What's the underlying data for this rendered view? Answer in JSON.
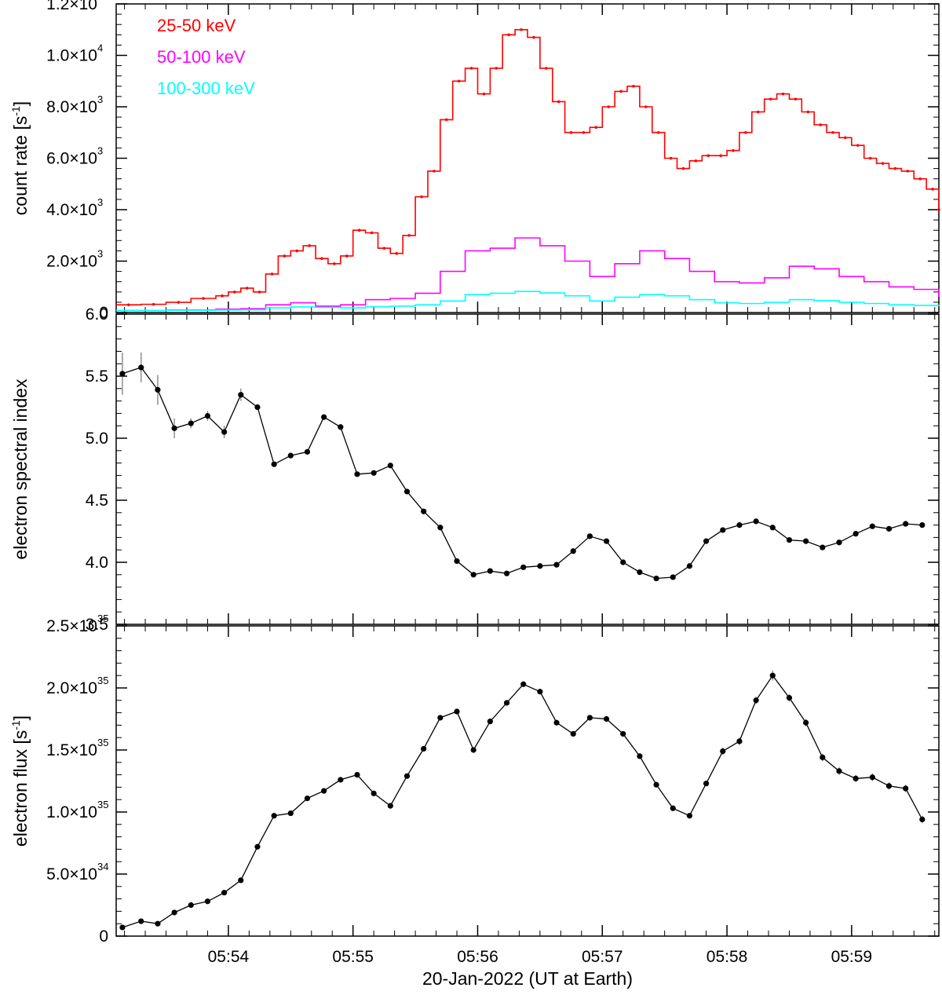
{
  "chart_data": [
    {
      "type": "line",
      "ylabel": "count rate [s",
      "ylabel_sup": "-1",
      "ylabel_close": "]",
      "xlim": [
        "05:53:06",
        "05:59:42"
      ],
      "ylim": [
        0,
        12000
      ],
      "legend": "top-left",
      "grid": false,
      "yticks": [
        {
          "v": 0,
          "base": "0",
          "exp": ""
        },
        {
          "v": 2000,
          "base": "2.0×10",
          "exp": "3"
        },
        {
          "v": 4000,
          "base": "4.0×10",
          "exp": "3"
        },
        {
          "v": 6000,
          "base": "6.0×10",
          "exp": "3"
        },
        {
          "v": 8000,
          "base": "8.0×10",
          "exp": "3"
        },
        {
          "v": 10000,
          "base": "1.0×10",
          "exp": "4"
        },
        {
          "v": 12000,
          "base": "1.2×10",
          "exp": "4"
        }
      ],
      "series": [
        {
          "name": "25-50 keV",
          "color": "#ff0000",
          "markers": true,
          "x": [
            "05:53:06",
            "05:53:18",
            "05:53:30",
            "05:53:42",
            "05:53:54",
            "05:54:00",
            "05:54:06",
            "05:54:12",
            "05:54:18",
            "05:54:24",
            "05:54:30",
            "05:54:36",
            "05:54:42",
            "05:54:48",
            "05:54:54",
            "05:55:00",
            "05:55:06",
            "05:55:12",
            "05:55:18",
            "05:55:24",
            "05:55:30",
            "05:55:36",
            "05:55:42",
            "05:55:48",
            "05:55:54",
            "05:56:00",
            "05:56:06",
            "05:56:12",
            "05:56:18",
            "05:56:24",
            "05:56:30",
            "05:56:36",
            "05:56:42",
            "05:56:48",
            "05:56:54",
            "05:57:00",
            "05:57:06",
            "05:57:12",
            "05:57:18",
            "05:57:24",
            "05:57:30",
            "05:57:36",
            "05:57:42",
            "05:57:48",
            "05:57:54",
            "05:58:00",
            "05:58:06",
            "05:58:12",
            "05:58:18",
            "05:58:24",
            "05:58:30",
            "05:58:36",
            "05:58:42",
            "05:58:48",
            "05:58:54",
            "05:59:00",
            "05:59:06",
            "05:59:12",
            "05:59:18",
            "05:59:24",
            "05:59:30",
            "05:59:36",
            "05:59:42"
          ],
          "values": [
            300,
            320,
            400,
            550,
            650,
            800,
            950,
            800,
            1500,
            2200,
            2400,
            2600,
            2100,
            1900,
            2200,
            3200,
            3100,
            2500,
            2300,
            3000,
            4500,
            5500,
            7500,
            9000,
            9500,
            8500,
            9500,
            10800,
            11000,
            10700,
            9500,
            8200,
            7000,
            7000,
            7200,
            8000,
            8600,
            8800,
            8000,
            7000,
            6000,
            5600,
            5900,
            6100,
            6100,
            6300,
            7000,
            7800,
            8300,
            8500,
            8300,
            7800,
            7300,
            7000,
            6800,
            6500,
            6000,
            5800,
            5600,
            5500,
            5200,
            4800,
            4000
          ]
        },
        {
          "name": "50-100 keV",
          "color": "#ff00ff",
          "markers": false,
          "x": [
            "05:53:06",
            "05:53:30",
            "05:53:54",
            "05:54:06",
            "05:54:18",
            "05:54:30",
            "05:54:42",
            "05:54:54",
            "05:55:06",
            "05:55:18",
            "05:55:30",
            "05:55:42",
            "05:55:54",
            "05:56:06",
            "05:56:18",
            "05:56:30",
            "05:56:42",
            "05:56:54",
            "05:57:06",
            "05:57:18",
            "05:57:30",
            "05:57:42",
            "05:57:54",
            "05:58:06",
            "05:58:18",
            "05:58:30",
            "05:58:42",
            "05:58:54",
            "05:59:06",
            "05:59:18",
            "05:59:30",
            "05:59:42"
          ],
          "values": [
            80,
            100,
            130,
            150,
            300,
            380,
            250,
            300,
            500,
            550,
            750,
            1600,
            2400,
            2500,
            2900,
            2600,
            2000,
            1400,
            1900,
            2400,
            2100,
            1600,
            1200,
            1150,
            1350,
            1800,
            1700,
            1400,
            1200,
            1000,
            900,
            600
          ]
        },
        {
          "name": "100-300 keV",
          "color": "#00ffff",
          "markers": false,
          "x": [
            "05:53:06",
            "05:53:30",
            "05:53:54",
            "05:54:06",
            "05:54:18",
            "05:54:30",
            "05:54:42",
            "05:54:54",
            "05:55:06",
            "05:55:18",
            "05:55:30",
            "05:55:42",
            "05:55:54",
            "05:56:06",
            "05:56:18",
            "05:56:30",
            "05:56:42",
            "05:56:54",
            "05:57:06",
            "05:57:18",
            "05:57:30",
            "05:57:42",
            "05:57:54",
            "05:58:06",
            "05:58:18",
            "05:58:30",
            "05:58:42",
            "05:58:54",
            "05:59:06",
            "05:59:18",
            "05:59:30",
            "05:59:42"
          ],
          "values": [
            80,
            90,
            100,
            110,
            180,
            220,
            200,
            180,
            230,
            250,
            300,
            450,
            700,
            750,
            820,
            760,
            650,
            450,
            600,
            700,
            650,
            500,
            380,
            350,
            400,
            500,
            460,
            400,
            350,
            300,
            280,
            250
          ]
        }
      ]
    },
    {
      "type": "line",
      "ylabel": "electron spectral index",
      "xlim": [
        "05:53:06",
        "05:59:42"
      ],
      "ylim": [
        3.5,
        6.0
      ],
      "grid": false,
      "yticks": [
        {
          "v": 3.5,
          "base": "3.5",
          "exp": ""
        },
        {
          "v": 4.0,
          "base": "4.0",
          "exp": ""
        },
        {
          "v": 4.5,
          "base": "4.5",
          "exp": ""
        },
        {
          "v": 5.0,
          "base": "5.0",
          "exp": ""
        },
        {
          "v": 5.5,
          "base": "5.5",
          "exp": ""
        },
        {
          "v": 6.0,
          "base": "6.0",
          "exp": ""
        }
      ],
      "series": [
        {
          "color": "#000000",
          "x": [
            "05:53:09",
            "05:53:18",
            "05:53:26",
            "05:53:34",
            "05:53:42",
            "05:53:50",
            "05:53:58",
            "05:54:06",
            "05:54:14",
            "05:54:22",
            "05:54:30",
            "05:54:38",
            "05:54:46",
            "05:54:54",
            "05:55:02",
            "05:55:10",
            "05:55:18",
            "05:55:26",
            "05:55:34",
            "05:55:42",
            "05:55:50",
            "05:55:58",
            "05:56:06",
            "05:56:14",
            "05:56:22",
            "05:56:30",
            "05:56:38",
            "05:56:46",
            "05:56:54",
            "05:57:02",
            "05:57:10",
            "05:57:18",
            "05:57:26",
            "05:57:34",
            "05:57:42",
            "05:57:50",
            "05:57:58",
            "05:58:06",
            "05:58:14",
            "05:58:22",
            "05:58:30",
            "05:58:38",
            "05:58:46",
            "05:58:54",
            "05:59:02",
            "05:59:10",
            "05:59:18",
            "05:59:26",
            "05:59:34"
          ],
          "values": [
            5.52,
            5.57,
            5.39,
            5.08,
            5.12,
            5.18,
            5.05,
            5.35,
            5.25,
            4.79,
            4.86,
            4.89,
            5.17,
            5.09,
            4.71,
            4.72,
            4.78,
            4.57,
            4.41,
            4.28,
            4.01,
            3.9,
            3.93,
            3.91,
            3.96,
            3.97,
            3.98,
            4.09,
            4.21,
            4.17,
            4.0,
            3.92,
            3.87,
            3.88,
            3.97,
            4.17,
            4.26,
            4.3,
            4.33,
            4.28,
            4.18,
            4.17,
            4.12,
            4.16,
            4.23,
            4.29,
            4.27,
            4.31,
            4.3
          ],
          "errors": [
            0.17,
            0.12,
            0.12,
            0.08,
            0.04,
            0.04,
            0.05,
            0.05,
            0.02,
            0.02,
            0.02,
            0.02,
            0.02,
            0.02,
            0.02,
            0.02,
            0.02,
            0.02,
            0.02,
            0.02,
            0.02,
            0.02,
            0.02,
            0.02,
            0.02,
            0.02,
            0.02,
            0.02,
            0.02,
            0.02,
            0.02,
            0.02,
            0.02,
            0.02,
            0.02,
            0.02,
            0.02,
            0.02,
            0.02,
            0.02,
            0.02,
            0.02,
            0.02,
            0.02,
            0.02,
            0.02,
            0.02,
            0.02,
            0.02
          ]
        }
      ]
    },
    {
      "type": "line",
      "ylabel": "electron flux [s",
      "ylabel_sup": "-1",
      "ylabel_close": "]",
      "xlabel": "20-Jan-2022 (UT at Earth)",
      "xlim": [
        "05:53:06",
        "05:59:42"
      ],
      "ylim": [
        0,
        2.5e+35
      ],
      "grid": false,
      "xticks": [
        "05:54",
        "05:55",
        "05:56",
        "05:57",
        "05:58",
        "05:59"
      ],
      "yticks": [
        {
          "v": 0,
          "base": "0",
          "exp": ""
        },
        {
          "v": 5e+34,
          "base": "5.0×10",
          "exp": "34"
        },
        {
          "v": 1e+35,
          "base": "1.0×10",
          "exp": "35"
        },
        {
          "v": 1.5e+35,
          "base": "1.5×10",
          "exp": "35"
        },
        {
          "v": 2e+35,
          "base": "2.0×10",
          "exp": "35"
        },
        {
          "v": 2.5e+35,
          "base": "2.5×10",
          "exp": "35"
        }
      ],
      "series": [
        {
          "color": "#000000",
          "x": [
            "05:53:09",
            "05:53:18",
            "05:53:26",
            "05:53:34",
            "05:53:42",
            "05:53:50",
            "05:53:58",
            "05:54:06",
            "05:54:14",
            "05:54:22",
            "05:54:30",
            "05:54:38",
            "05:54:46",
            "05:54:54",
            "05:55:02",
            "05:55:10",
            "05:55:18",
            "05:55:26",
            "05:55:34",
            "05:55:42",
            "05:55:50",
            "05:55:58",
            "05:56:06",
            "05:56:14",
            "05:56:22",
            "05:56:30",
            "05:56:38",
            "05:56:46",
            "05:56:54",
            "05:57:02",
            "05:57:10",
            "05:57:18",
            "05:57:26",
            "05:57:34",
            "05:57:42",
            "05:57:50",
            "05:57:58",
            "05:58:06",
            "05:58:14",
            "05:58:22",
            "05:58:30",
            "05:58:38",
            "05:58:46",
            "05:58:54",
            "05:59:02",
            "05:59:10",
            "05:59:18",
            "05:59:26",
            "05:59:34"
          ],
          "values": [
            7e+33,
            1.2e+34,
            1e+34,
            1.9e+34,
            2.5e+34,
            2.8e+34,
            3.5e+34,
            4.5e+34,
            7.2e+34,
            9.7e+34,
            9.9e+34,
            1.11e+35,
            1.17e+35,
            1.26e+35,
            1.3e+35,
            1.15e+35,
            1.05e+35,
            1.29e+35,
            1.51e+35,
            1.76e+35,
            1.81e+35,
            1.5e+35,
            1.73e+35,
            1.88e+35,
            2.03e+35,
            1.97e+35,
            1.72e+35,
            1.63e+35,
            1.76e+35,
            1.75e+35,
            1.63e+35,
            1.45e+35,
            1.22e+35,
            1.03e+35,
            9.7e+34,
            1.23e+35,
            1.49e+35,
            1.57e+35,
            1.9e+35,
            2.1e+35,
            1.92e+35,
            1.72e+35,
            1.44e+35,
            1.33e+35,
            1.27e+35,
            1.28e+35,
            1.21e+35,
            1.19e+35,
            9.4e+34
          ],
          "errors": [
            1e+33,
            1e+33,
            1e+33,
            1e+33,
            1e+33,
            1e+33,
            1e+33,
            1e+33,
            1e+33,
            1e+33,
            1e+33,
            1e+33,
            1e+33,
            1e+33,
            1e+33,
            1e+33,
            1e+33,
            1e+33,
            1e+33,
            1e+33,
            1e+33,
            1e+33,
            1e+33,
            1e+33,
            1e+33,
            1e+33,
            1e+33,
            1e+33,
            1e+33,
            1e+33,
            1e+33,
            1e+33,
            1e+33,
            1e+33,
            1e+33,
            2e+33,
            3e+33,
            3e+33,
            3e+33,
            4e+33,
            3e+33,
            3e+33,
            3e+33,
            3e+33,
            3e+33,
            3e+33,
            3e+33,
            3e+33,
            3e+33
          ]
        }
      ]
    }
  ]
}
